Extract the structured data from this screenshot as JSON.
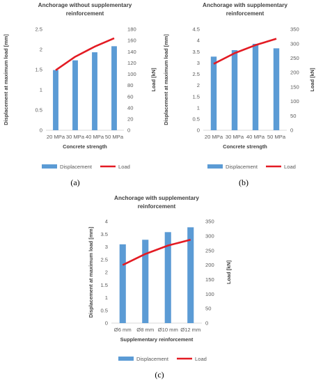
{
  "panels": {
    "a": {
      "caption": "(a)"
    },
    "b": {
      "caption": "(b)"
    },
    "c": {
      "caption": "(c)"
    }
  },
  "colors": {
    "bar": "#5B9BD5",
    "line": "#E31B23",
    "text": "#404040",
    "grid": "#d9d9d9"
  },
  "chart_data": [
    {
      "type": "bar",
      "title": [
        "Anchorage without supplementary",
        "reinforcement"
      ],
      "xlabel": "Concrete strength",
      "ylabel": "Displacement at maximum load [mm]",
      "y2label": "Load [kN]",
      "categories": [
        "20 MPa",
        "30 MPa",
        "40 MPa",
        "50 MPa"
      ],
      "ylim": [
        0,
        2.5
      ],
      "yticks": [
        "0",
        "0.5",
        "1",
        "1.5",
        "2",
        "2.5"
      ],
      "y2lim": [
        0,
        180
      ],
      "y2ticks": [
        "0",
        "20",
        "40",
        "60",
        "80",
        "100",
        "120",
        "140",
        "160",
        "180"
      ],
      "series": [
        {
          "name": "Displacement",
          "kind": "bar",
          "axis": "left",
          "values": [
            1.49,
            1.73,
            1.93,
            2.08
          ]
        },
        {
          "name": "Load",
          "kind": "line",
          "axis": "right",
          "values": [
            107,
            131,
            149,
            164
          ]
        }
      ],
      "legend": "bottom"
    },
    {
      "type": "bar",
      "title": [
        "Anchorage with supplementary",
        "reinforcement"
      ],
      "xlabel": "Concrete strength",
      "ylabel": "Displacement at maximum load [mm]",
      "y2label": "Load [kN]",
      "categories": [
        "20 MPa",
        "30 MPa",
        "40 MPa",
        "50 MPa"
      ],
      "ylim": [
        0,
        4.5
      ],
      "yticks": [
        "0",
        "0.5",
        "1",
        "1.5",
        "2",
        "2.5",
        "3",
        "3.5",
        "4",
        "4.5"
      ],
      "y2lim": [
        0,
        350
      ],
      "y2ticks": [
        "0",
        "50",
        "100",
        "150",
        "200",
        "250",
        "300",
        "350"
      ],
      "series": [
        {
          "name": "Displacement",
          "kind": "bar",
          "axis": "left",
          "values": [
            3.28,
            3.57,
            3.85,
            3.65
          ]
        },
        {
          "name": "Load",
          "kind": "line",
          "axis": "right",
          "values": [
            230,
            267,
            295,
            317
          ]
        }
      ],
      "legend": "bottom"
    },
    {
      "type": "bar",
      "title": [
        "Anchorage with supplementary",
        "reinforcement"
      ],
      "xlabel": "Supplementary reinforcement",
      "ylabel": "Displacement at maximum load [mm]",
      "y2label": "Load [kN]",
      "categories": [
        "Ø6 mm",
        "Ø8 mm",
        "Ø10 mm",
        "Ø12 mm"
      ],
      "ylim": [
        0,
        4
      ],
      "yticks": [
        "0",
        "0.5",
        "1",
        "1.5",
        "2",
        "2.5",
        "3",
        "3.5",
        "4"
      ],
      "y2lim": [
        0,
        350
      ],
      "y2ticks": [
        "0",
        "50",
        "100",
        "150",
        "200",
        "250",
        "300",
        "350"
      ],
      "series": [
        {
          "name": "Displacement",
          "kind": "bar",
          "axis": "left",
          "values": [
            3.1,
            3.28,
            3.58,
            3.77
          ]
        },
        {
          "name": "Load",
          "kind": "line",
          "axis": "right",
          "values": [
            200,
            238,
            267,
            287
          ]
        }
      ],
      "legend": "bottom"
    }
  ]
}
